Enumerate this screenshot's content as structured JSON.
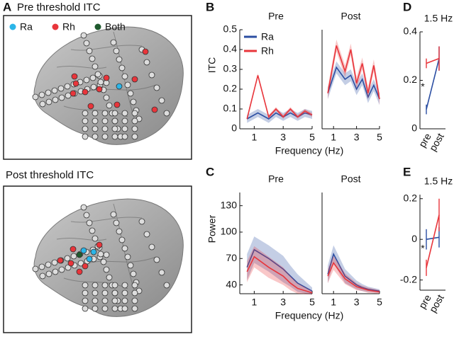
{
  "panel_a": {
    "label": "A",
    "pre_title": "Pre threshold ITC",
    "post_title": "Post threshold ITC",
    "legend": [
      "Ra",
      "Rh",
      "Both"
    ]
  },
  "panel_labels": [
    "B",
    "C",
    "D",
    "E"
  ],
  "chart_data": [
    {
      "type": "line",
      "title": "Pre",
      "y_label": "ITC",
      "x_label": "Frequency (Hz)",
      "legend": "upper left",
      "x": [
        0.5,
        1.25,
        2,
        2.5,
        3,
        3.5,
        4,
        4.5,
        5
      ],
      "xlim": [
        0,
        5
      ],
      "xticks": [
        1,
        3,
        5
      ],
      "ylim": [
        0,
        0.5
      ],
      "yticks": [
        0,
        0.1,
        0.2,
        0.3,
        0.4,
        0.5
      ],
      "series": [
        {
          "name": "Ra",
          "color": "#2b4ea2",
          "values": [
            0.05,
            0.08,
            0.05,
            0.08,
            0.06,
            0.08,
            0.06,
            0.08,
            0.07
          ],
          "errors": [
            0.02,
            0.02,
            0.02,
            0.02,
            0.02,
            0.02,
            0.02,
            0.02,
            0.02
          ]
        },
        {
          "name": "Rh",
          "color": "#e8353b",
          "values": [
            0.05,
            0.27,
            0.06,
            0.1,
            0.06,
            0.1,
            0.06,
            0.09,
            0.07
          ],
          "errors": [
            0.01,
            0.01,
            0.01,
            0.01,
            0.01,
            0.01,
            0.01,
            0.01,
            0.01
          ]
        }
      ]
    },
    {
      "type": "line",
      "title": "Post",
      "x": [
        0.5,
        1.25,
        2,
        2.5,
        3,
        3.5,
        4,
        4.5,
        5
      ],
      "xlim": [
        0,
        5
      ],
      "xticks": [
        1,
        3,
        5
      ],
      "ylim": [
        0,
        0.5
      ],
      "series": [
        {
          "name": "Ra",
          "color": "#2b4ea2",
          "values": [
            0.18,
            0.31,
            0.25,
            0.27,
            0.2,
            0.25,
            0.16,
            0.22,
            0.15
          ],
          "errors": [
            0.03,
            0.03,
            0.03,
            0.03,
            0.03,
            0.03,
            0.03,
            0.03,
            0.03
          ]
        },
        {
          "name": "Rh",
          "color": "#e8353b",
          "values": [
            0.18,
            0.42,
            0.29,
            0.4,
            0.23,
            0.33,
            0.18,
            0.32,
            0.15
          ],
          "errors": [
            0.03,
            0.03,
            0.03,
            0.03,
            0.03,
            0.03,
            0.03,
            0.03,
            0.03
          ]
        }
      ]
    },
    {
      "type": "line",
      "title": "Pre",
      "y_label": "Power",
      "x_label": "Frequency (Hz)",
      "x": [
        0.5,
        1,
        2,
        3,
        3.5,
        4,
        5
      ],
      "xlim": [
        0,
        5
      ],
      "xticks": [
        1,
        3,
        5
      ],
      "ylim": [
        30,
        145
      ],
      "yticks": [
        40,
        70,
        100,
        130
      ],
      "series": [
        {
          "name": "Ra",
          "color": "#2b4ea2",
          "values": [
            60,
            80,
            70,
            58,
            50,
            42,
            33
          ],
          "errors": [
            15,
            15,
            15,
            15,
            12,
            10,
            4
          ]
        },
        {
          "name": "Rh",
          "color": "#e8353b",
          "values": [
            55,
            72,
            60,
            50,
            42,
            36,
            31
          ],
          "errors": [
            12,
            12,
            12,
            10,
            8,
            6,
            2
          ]
        }
      ]
    },
    {
      "type": "line",
      "title": "Post",
      "x": [
        0.5,
        1,
        2,
        3,
        3.5,
        4,
        5
      ],
      "xlim": [
        0,
        5
      ],
      "xticks": [
        1,
        3,
        5
      ],
      "ylim": [
        30,
        145
      ],
      "series": [
        {
          "name": "Ra",
          "color": "#2b4ea2",
          "values": [
            52,
            75,
            50,
            40,
            37,
            35,
            33
          ],
          "errors": [
            10,
            10,
            8,
            5,
            4,
            3,
            2
          ]
        },
        {
          "name": "Rh",
          "color": "#e8353b",
          "values": [
            50,
            65,
            47,
            38,
            36,
            34,
            32
          ],
          "errors": [
            8,
            8,
            6,
            4,
            3,
            3,
            2
          ]
        }
      ]
    },
    {
      "type": "errorline",
      "title": "1.5 Hz",
      "annotation": "*",
      "categories": [
        "pre",
        "post"
      ],
      "ylim": [
        0,
        0.4
      ],
      "yticks": [
        0,
        0.2,
        0.4
      ],
      "series": [
        {
          "name": "Ra",
          "color": "#2b4ea2",
          "values": [
            0.08,
            0.29
          ],
          "errors": [
            0.02,
            0.05
          ]
        },
        {
          "name": "Rh",
          "color": "#e8353b",
          "values": [
            0.27,
            0.29
          ],
          "errors": [
            0.02,
            0.05
          ]
        }
      ]
    },
    {
      "type": "errorline",
      "title": "1.5 Hz",
      "annotation": "*",
      "categories": [
        "pre",
        "post"
      ],
      "ylim": [
        -0.25,
        0.22
      ],
      "yticks": [
        -0.2,
        0,
        0.2
      ],
      "series": [
        {
          "name": "Ra",
          "color": "#2b4ea2",
          "values": [
            0,
            0.01
          ],
          "errors": [
            0.05,
            0.05
          ]
        },
        {
          "name": "Rh",
          "color": "#e8353b",
          "values": [
            -0.14,
            0.12
          ],
          "errors": [
            0.04,
            0.08
          ]
        }
      ]
    }
  ]
}
